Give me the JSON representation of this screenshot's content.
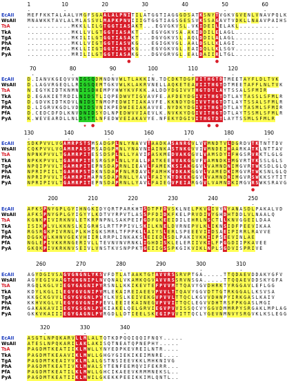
{
  "alignment": {
    "names": [
      "EcAII",
      "WsAII",
      "TsA",
      "TkA",
      "TgA",
      "PhA",
      "PfA",
      "PyA"
    ],
    "name_colors": [
      "#1f3fbf",
      "#000000",
      "#d81e2a",
      "#000000",
      "#000000",
      "#000000",
      "#000000",
      "#000000"
    ],
    "blocks": [
      {
        "ruler": [
          {
            "label": "1",
            "col": 0
          },
          {
            "label": "10",
            "col": 9
          },
          {
            "label": "20",
            "col": 19
          },
          {
            "label": "30",
            "col": 29
          },
          {
            "label": "40",
            "col": 39
          },
          {
            "label": "50",
            "col": 49
          },
          {
            "label": "60",
            "col": 59
          }
        ],
        "rows": [
          "MEFFKKTALAALVMGFSGAALALPNITILATGGTIAGGGDSATKSNYTVGKVGVENLVNAVPQLK",
          "MNAWKKTAVLALMLASSVLMAPKPNVIIIGTGGTIAGSGESSVKSSAGAVTVDKLLNAAVPAIHS",
          "...........MKKLLILGTGGTIASAKT...EGVGKVSL.VKIDEILELAKL..........",
          "...........MKLLVLGTGGTIASAKT...EGVGKVSA.AKIDDILELAGL..........",
          "...........MKILILGTGGTIASAKT...DGVGKVSL.AQLDDILALAGL..........",
          "...........MKLLVIGTGGTIASVKG...EGIGKVGL.AALDSLLKLAGI..........",
          "...........MKLLIIGTGGTIASVKG...EGVGKVGL.EAIDQLLKLSGV..........",
          "...........MRILILGTGGTIASAKG...DGVGRVGL.EALDAIIRLTGL.........."
        ],
        "yellow_cols": [
          14,
          16,
          17,
          18,
          27,
          28,
          38,
          39,
          40,
          44,
          45,
          46,
          52,
          53,
          54,
          56,
          57
        ],
        "red_cols": [
          19,
          20,
          21,
          22,
          23,
          24,
          25,
          43,
          47
        ],
        "markers": [
          {
            "symbol": "●",
            "col": 25
          },
          {
            "symbol": "●",
            "col": 47
          }
        ]
      },
      {
        "ruler": [
          {
            "label": "70",
            "col": 1
          },
          {
            "label": "80",
            "col": 11
          },
          {
            "label": "90",
            "col": 21
          },
          {
            "label": "100",
            "col": 31
          },
          {
            "label": "110",
            "col": 41
          },
          {
            "label": "120",
            "col": 51
          }
        ],
        "rows": [
          "D.IANVKGEQVVNIGSQDMNDNVWLTLAKKIN.TDCDKTDGFVITHGTDTMEETAYFLDLTVK",
          "D.LAGVRGEQLLRIGSQEMTGKVWLKLAKRVNELLAQKETEAVIITHGTDTMEETAFFLNLTVK",
          "N.EGYKIDTKNMNIISDHEMPYHWYKVFKK.ALDDYDGIVVTHGTDTLAYTSSALSFMIR",
          "D.EGAKIETRDILNIDSTLIQPEDWVTIGVAVFE.AFDEYDGIVITHGTDTLAYTASSLSFMLR",
          "D.GDVKIDTKDVLNIDSTNMOPEDWITIAKAVFE.KKNDYDGIVVTHGTDTLAYTSSALSFMLR",
          "D.LIGRVKGDLVDNIDSVNIKPEDWIEIAKAVVE.NYDKYDGIVITHGTDTLAYTASMLSFMIR",
          "D.CEDCDFDLKNVDNIDSYDLNPEDWVVIAEVLK.NVKKYDGIVITHGTDTLAYTSSMLSFMLR",
          "K.WEVEARDLLNLDSTTLNFEDWVEIAKAVYE.NFEKYDGIVITHGTDTLAYTSSMLSFMLR"
        ],
        "yellow_cols": [
          0,
          17,
          18,
          23,
          24,
          25,
          26,
          27,
          28,
          29,
          35,
          36,
          37,
          38,
          39,
          40,
          41,
          54,
          55,
          56,
          57,
          58,
          59,
          60,
          61,
          62
        ],
        "red_cols": [
          42,
          43,
          44,
          45,
          46,
          47,
          48
        ],
        "green_cols": [
          13,
          14,
          15,
          16
        ],
        "markers": [
          {
            "symbol": "★",
            "col": 14
          },
          {
            "symbol": "●",
            "col": 16
          },
          {
            "symbol": "●",
            "col": 45
          },
          {
            "symbol": "●",
            "col": 47
          }
        ]
      },
      {
        "ruler": [
          {
            "label": "130",
            "col": 0
          },
          {
            "label": "140",
            "col": 10
          },
          {
            "label": "150",
            "col": 20
          },
          {
            "label": "160",
            "col": 30
          },
          {
            "label": "170",
            "col": 40
          },
          {
            "label": "180",
            "col": 50
          },
          {
            "label": "190",
            "col": 60
          }
        ],
        "rows": [
          "SDKPVVLVGAMRPSTSMSADGPLNLYNAVVTAADKASANRGVLVVMNDTVLDGRDVTKTNTTDV",
          "CQKPVVLVGAMRPASSMSADGPMNLYNAVNIAINKASTNKGVVIVMNDEIHAARKATKLNTTAV",
          "NPNKPVVLTGAMRPITESSDSPLNLLYAVIFASKMEDVAKGGVLVAMSDYIFHGSRVRKTLGLG",
          "NPKKPVVLTGAMRPITESRGSPLNLLYALLFATKEEHVAKGGVFVAMNDKIMGVRTYKSSLGLS",
          "NPQIPVVLTGAMRPITEPNSDAPRNLIEAVLFAMEKKSIAKGGVLVAMNDNIMGVRTWKSDLGLQ",
          "NPRIPIILTGAMRPSTDKNSDAPFNLRDAVLFAMHKVDKAKGGVLVAMEDKIMGVRTWKSNLGLQ",
          "NPRIPVVLTGAMRPIMAPNSDAPRNLLYAVLFAIYKTDKEKGGVLVAMNDRIMGVRSWKKSYTIT",
          "NPRIPIVLTGAMRPITEPNSDAPRNLLYAVLFAIEGVPEIARGGVLVAMNDKIMGVRSWKSRAVGL"
        ],
        "yellow_cols": [
          0,
          1,
          2,
          3,
          4,
          5,
          6,
          7,
          8,
          17,
          19,
          20,
          21,
          23,
          24,
          25,
          26,
          27,
          31,
          32,
          33,
          34,
          41,
          45,
          46,
          47,
          48,
          49,
          51,
          52
        ],
        "red_cols": [
          9,
          10,
          11,
          12,
          13,
          14,
          15,
          22,
          30,
          36,
          37,
          38,
          39,
          40,
          44,
          50,
          56,
          57
        ],
        "markers": [
          {
            "symbol": "●",
            "col": 56
          }
        ]
      },
      {
        "ruler": [
          {
            "label": "200",
            "col": 6
          },
          {
            "label": "210",
            "col": 16
          },
          {
            "label": "220",
            "col": 26
          },
          {
            "label": "230",
            "col": 36
          },
          {
            "label": "240",
            "col": 46
          },
          {
            "label": "250",
            "col": 56
          }
        ],
        "rows": [
          "AFKSPNYGPLGYIHNGKIDYQRTPARKHTSDTPFDVSKLNELPKVGIVYNYANASDLPAKALVD",
          "AFKSPNYGPLGYIGYYLKDTVYRPVTLASSPFDIDKFKELPRVDIVYGHDHTDDLVLNAALQ",
          "KGNKPIVIRKNVLETKRPNPNLSAKPEIFGDFGKEEIDILEHRLNSCTLLKNVGGEILDAA",
          "ISIKPLVLKKNSLKIGRHSLRTTPPIVLSKILKNELDVRNEPVLKLIKNSIDFPEEVIKAA",
          "RGSRGKPIVRNLPLKHIGKSMRLTFPPKLLAIYSLERLSPEEEVIIDSAEIPIRRLRAVVE",
          "DGGKVLKHNVGEKVHIIRLRRPLINKAKSLEIEDLSDLPAKIVKKIIPSEEVINLAE",
          "NGLEPIVKKRNGERIVLLTEVNVNVRNKLIGHDISKLELERIIVKILFPGGDIIPKAVEE",
          "GKQKPIVKRKNVSEIVLVNSTKVSNPPKTGEIIGSSPKGIKVIKLNPLSGDVISPRIVE"
        ],
        "yellow_cols": [
          0,
          1,
          2,
          3,
          4,
          5,
          6,
          7,
          8,
          9,
          10,
          11,
          13,
          14,
          16,
          17,
          30,
          31,
          32,
          33,
          35,
          36,
          41,
          42,
          43,
          44,
          46,
          47,
          50,
          51,
          52,
          54,
          55,
          56
        ],
        "red_cols": [
          4,
          29,
          34,
          45,
          49
        ],
        "markers": []
      },
      {
        "ruler": [
          {
            "label": "260",
            "col": 3
          },
          {
            "label": "270",
            "col": 13
          },
          {
            "label": "280",
            "col": 23
          },
          {
            "label": "290",
            "col": 33
          },
          {
            "label": "300",
            "col": 43
          },
          {
            "label": "310",
            "col": 53
          }
        ],
        "rows": [
          "AGYDGIVSAGVGNGNLYKSVFDTLATAAKTGTAVVRSSRVPTGA.....TTQDAEVDDAKYGFV",
          "AGYEGIVAAGTGNGNIPLNVQNALVKAMKQGVAVVRSSRVNSGA.....TTQQAEVDDSKYGFA",
          "RGQLKGLVIEGYGAGNIPYRSNLLKKIKEVTEFPVVMTTQAVYGVDHRKTYRGGAVLEFLGG",
          "KDYLKGLILEGYGVGNIPYMLEKAIREIAEEVPVVLTTQAVYGGVDTTGTRKGGALLKSVSA",
          "KKGCKGVVLEGYGVGNLPYYLKVSLKEIVEKGVPVVLTTQCLKGVVDHNPYIRKGASLKAIV",
          "KKHVKGLVLEGYGVGNIPFEVLEEIEKAINEGVPVVITTQCLEGVVDHTRSFPKGASLMGI",
          "GAKAKAVIIEGYGSGNLPYKIAKELQELGRVIEGVPVVISSQCVYGGVDMMRPYSRGAKLMPLAG",
          "GKKVKAIIIEGYGAGNLPYRGDLLDTIEELSKEGIPVVITTQCLYGEVNMNVYSRGVKLKSLEGG"
        ],
        "yellow_cols": [
          2,
          3,
          4,
          5,
          6,
          7,
          8,
          22,
          23,
          26,
          27,
          28,
          29,
          30,
          31,
          37,
          38,
          39,
          40,
          45,
          46,
          47,
          48,
          50,
          51,
          52,
          53,
          54,
          55
        ],
        "red_cols": [
          9,
          10,
          11,
          12,
          13,
          14,
          15,
          16,
          17,
          18,
          32,
          33,
          34,
          35,
          36
        ],
        "markers": []
      },
      {
        "ruler": [
          {
            "label": "320",
            "col": 4
          },
          {
            "label": "330",
            "col": 14
          },
          {
            "label": "340",
            "col": 24
          }
        ],
        "rows": [
          "ASGTLNPQKARVLLMLALTQTKDPQQIQQIFNQY.....",
          "ATESLNPQKARILAKLAKISQTNEATQPNEPHY.....",
          "PAGDMTKEATIIKLMWLLYNYEDPKEVREILNTR....",
          "PAGDMTKEAAVIKLMWLLGHGYGIEKIKEIMNRE....",
          "PAGDMTKEAIYVKLMLALGSTNSIEEVKKLMHKNIVG",
          "PAGDMTKEATIVKLMWALSYTENFEEMQVIFEKRR...",
          "PAGDMTKEATILKLMWLLGHCIKAEEVKRMMNEKSL..",
          "PAGDMTKEATIIKLMWILGKEKKPEEIKKIMLQNTL.."
        ],
        "yellow_cols": [
          0,
          1,
          2,
          3,
          4,
          5,
          6,
          7,
          8,
          9,
          10,
          11,
          15,
          16,
          17,
          18
        ],
        "red_cols": [
          12,
          13,
          14
        ],
        "markers": []
      }
    ]
  }
}
